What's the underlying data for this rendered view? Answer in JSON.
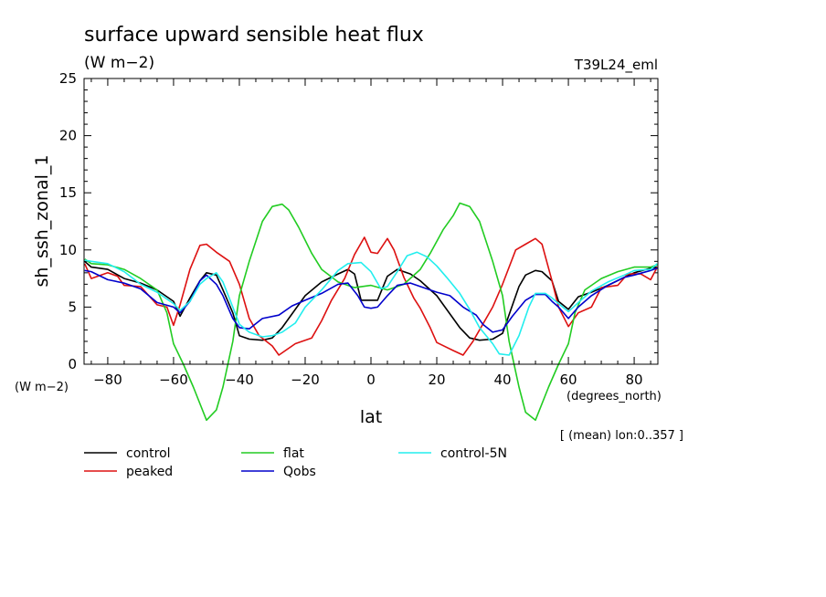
{
  "chart_data": {
    "type": "line",
    "title": "surface upward sensible heat flux",
    "subtitle": "(W m−2)",
    "run_label": "T39L24_eml",
    "ylabel": "sh_ssh_zonal_1",
    "y_unit_label": "(W m−2)",
    "xlabel": "lat",
    "x_unit_label": "(degrees_north)",
    "footnote": "[ (mean) lon:0..357 ]",
    "xlim": [
      -87.2,
      87.2
    ],
    "ylim": [
      0,
      25
    ],
    "x_ticks": [
      -80,
      -60,
      -40,
      -20,
      0,
      20,
      40,
      60,
      80
    ],
    "y_ticks": [
      0,
      5,
      10,
      15,
      20,
      25
    ],
    "grid": false,
    "legend_position": "bottom",
    "series": [
      {
        "name": "control",
        "color": "#000000",
        "points": [
          [
            -87,
            9.0
          ],
          [
            -85,
            8.5
          ],
          [
            -80,
            8.3
          ],
          [
            -75,
            7.5
          ],
          [
            -70,
            7.1
          ],
          [
            -65,
            6.5
          ],
          [
            -60,
            5.5
          ],
          [
            -58,
            4.2
          ],
          [
            -55,
            5.8
          ],
          [
            -52,
            7.3
          ],
          [
            -50,
            8.0
          ],
          [
            -47,
            7.8
          ],
          [
            -45,
            6.5
          ],
          [
            -42,
            4.5
          ],
          [
            -40,
            2.5
          ],
          [
            -37,
            2.2
          ],
          [
            -33,
            2.1
          ],
          [
            -30,
            2.3
          ],
          [
            -27,
            3.2
          ],
          [
            -23,
            4.8
          ],
          [
            -20,
            6.0
          ],
          [
            -15,
            7.2
          ],
          [
            -10,
            7.9
          ],
          [
            -7,
            8.3
          ],
          [
            -5,
            7.9
          ],
          [
            -3,
            5.6
          ],
          [
            0,
            5.6
          ],
          [
            2,
            5.6
          ],
          [
            5,
            7.7
          ],
          [
            8,
            8.3
          ],
          [
            12,
            7.9
          ],
          [
            15,
            7.3
          ],
          [
            20,
            6.0
          ],
          [
            23,
            4.8
          ],
          [
            27,
            3.2
          ],
          [
            30,
            2.3
          ],
          [
            33,
            2.1
          ],
          [
            37,
            2.2
          ],
          [
            40,
            2.7
          ],
          [
            45,
            6.8
          ],
          [
            47,
            7.8
          ],
          [
            50,
            8.2
          ],
          [
            52,
            8.1
          ],
          [
            55,
            7.3
          ],
          [
            57,
            5.5
          ],
          [
            60,
            4.8
          ],
          [
            63,
            5.9
          ],
          [
            67,
            6.3
          ],
          [
            72,
            6.9
          ],
          [
            77,
            7.6
          ],
          [
            80,
            8.0
          ],
          [
            85,
            8.4
          ],
          [
            87,
            8.5
          ]
        ]
      },
      {
        "name": "peaked",
        "color": "#dd1111",
        "points": [
          [
            -87,
            8.8
          ],
          [
            -85,
            7.5
          ],
          [
            -80,
            8.0
          ],
          [
            -77,
            7.7
          ],
          [
            -75,
            6.9
          ],
          [
            -70,
            6.8
          ],
          [
            -65,
            5.2
          ],
          [
            -62,
            5.0
          ],
          [
            -60,
            3.4
          ],
          [
            -58,
            5.2
          ],
          [
            -55,
            8.3
          ],
          [
            -52,
            10.4
          ],
          [
            -50,
            10.5
          ],
          [
            -47,
            9.8
          ],
          [
            -43,
            9.0
          ],
          [
            -40,
            7.0
          ],
          [
            -37,
            4.0
          ],
          [
            -34,
            2.5
          ],
          [
            -30,
            1.6
          ],
          [
            -28,
            0.8
          ],
          [
            -25,
            1.4
          ],
          [
            -23,
            1.8
          ],
          [
            -18,
            2.3
          ],
          [
            -15,
            3.8
          ],
          [
            -12,
            5.6
          ],
          [
            -8,
            7.5
          ],
          [
            -5,
            9.6
          ],
          [
            -2,
            11.1
          ],
          [
            0,
            9.8
          ],
          [
            2,
            9.7
          ],
          [
            5,
            11.0
          ],
          [
            7,
            10.0
          ],
          [
            10,
            7.6
          ],
          [
            13,
            5.8
          ],
          [
            15,
            4.9
          ],
          [
            18,
            3.2
          ],
          [
            20,
            1.9
          ],
          [
            25,
            1.2
          ],
          [
            28,
            0.8
          ],
          [
            31,
            2.0
          ],
          [
            34,
            3.5
          ],
          [
            37,
            5.0
          ],
          [
            40,
            7.0
          ],
          [
            44,
            10.0
          ],
          [
            47,
            10.5
          ],
          [
            50,
            11.0
          ],
          [
            52,
            10.5
          ],
          [
            55,
            7.3
          ],
          [
            57,
            5.0
          ],
          [
            60,
            3.3
          ],
          [
            63,
            4.5
          ],
          [
            67,
            5.0
          ],
          [
            70,
            6.7
          ],
          [
            75,
            6.9
          ],
          [
            78,
            7.9
          ],
          [
            82,
            7.9
          ],
          [
            85,
            7.4
          ],
          [
            87,
            8.5
          ]
        ]
      },
      {
        "name": "flat",
        "color": "#22cc22",
        "points": [
          [
            -87,
            9.2
          ],
          [
            -85,
            8.8
          ],
          [
            -80,
            8.7
          ],
          [
            -75,
            8.3
          ],
          [
            -70,
            7.5
          ],
          [
            -65,
            6.5
          ],
          [
            -62,
            4.5
          ],
          [
            -60,
            1.8
          ],
          [
            -57,
            0.0
          ],
          [
            -54,
            -2.0
          ],
          [
            -50,
            -4.9
          ],
          [
            -47,
            -4.0
          ],
          [
            -45,
            -2.0
          ],
          [
            -42,
            2.0
          ],
          [
            -40,
            6.0
          ],
          [
            -37,
            9.0
          ],
          [
            -33,
            12.5
          ],
          [
            -30,
            13.8
          ],
          [
            -27,
            14.0
          ],
          [
            -25,
            13.5
          ],
          [
            -22,
            12.0
          ],
          [
            -18,
            9.7
          ],
          [
            -15,
            8.3
          ],
          [
            -10,
            7.2
          ],
          [
            -5,
            6.7
          ],
          [
            0,
            6.9
          ],
          [
            5,
            6.5
          ],
          [
            10,
            7.0
          ],
          [
            15,
            8.3
          ],
          [
            18,
            9.7
          ],
          [
            22,
            11.8
          ],
          [
            25,
            13.0
          ],
          [
            27,
            14.1
          ],
          [
            30,
            13.8
          ],
          [
            33,
            12.5
          ],
          [
            37,
            9.0
          ],
          [
            40,
            6.0
          ],
          [
            42,
            2.0
          ],
          [
            45,
            -2.0
          ],
          [
            47,
            -4.2
          ],
          [
            50,
            -4.9
          ],
          [
            54,
            -2.0
          ],
          [
            57,
            0.0
          ],
          [
            60,
            1.8
          ],
          [
            62,
            4.5
          ],
          [
            65,
            6.5
          ],
          [
            70,
            7.5
          ],
          [
            75,
            8.1
          ],
          [
            80,
            8.5
          ],
          [
            85,
            8.5
          ],
          [
            87,
            8.7
          ]
        ]
      },
      {
        "name": "Qobs",
        "color": "#0000cc",
        "points": [
          [
            -87,
            8.2
          ],
          [
            -85,
            8.1
          ],
          [
            -80,
            7.4
          ],
          [
            -75,
            7.1
          ],
          [
            -70,
            6.6
          ],
          [
            -65,
            5.4
          ],
          [
            -60,
            5.0
          ],
          [
            -58,
            4.5
          ],
          [
            -55,
            5.5
          ],
          [
            -52,
            7.3
          ],
          [
            -50,
            7.8
          ],
          [
            -47,
            7.0
          ],
          [
            -45,
            6.0
          ],
          [
            -42,
            4.0
          ],
          [
            -40,
            3.2
          ],
          [
            -37,
            3.1
          ],
          [
            -33,
            4.0
          ],
          [
            -28,
            4.3
          ],
          [
            -24,
            5.1
          ],
          [
            -20,
            5.6
          ],
          [
            -15,
            6.2
          ],
          [
            -10,
            7.0
          ],
          [
            -7,
            7.1
          ],
          [
            -4,
            6.0
          ],
          [
            -2,
            5.0
          ],
          [
            0,
            4.9
          ],
          [
            2,
            5.0
          ],
          [
            5,
            6.0
          ],
          [
            8,
            6.9
          ],
          [
            12,
            7.1
          ],
          [
            17,
            6.6
          ],
          [
            20,
            6.3
          ],
          [
            24,
            6.0
          ],
          [
            28,
            5.0
          ],
          [
            32,
            4.3
          ],
          [
            34,
            3.5
          ],
          [
            37,
            2.8
          ],
          [
            40,
            3.0
          ],
          [
            43,
            4.2
          ],
          [
            47,
            5.6
          ],
          [
            50,
            6.1
          ],
          [
            53,
            6.1
          ],
          [
            55,
            5.5
          ],
          [
            57,
            5.0
          ],
          [
            60,
            4.0
          ],
          [
            63,
            5.0
          ],
          [
            67,
            6.0
          ],
          [
            72,
            6.9
          ],
          [
            77,
            7.6
          ],
          [
            80,
            7.8
          ],
          [
            85,
            8.2
          ],
          [
            87,
            8.4
          ]
        ]
      },
      {
        "name": "control-5N",
        "color": "#22eeee",
        "points": [
          [
            -87,
            9.1
          ],
          [
            -85,
            9.0
          ],
          [
            -80,
            8.8
          ],
          [
            -75,
            8.1
          ],
          [
            -70,
            7.0
          ],
          [
            -65,
            6.3
          ],
          [
            -60,
            5.3
          ],
          [
            -58,
            4.7
          ],
          [
            -55,
            5.5
          ],
          [
            -52,
            7.0
          ],
          [
            -50,
            7.5
          ],
          [
            -47,
            8.0
          ],
          [
            -45,
            7.2
          ],
          [
            -42,
            5.0
          ],
          [
            -40,
            3.5
          ],
          [
            -37,
            2.8
          ],
          [
            -33,
            2.4
          ],
          [
            -30,
            2.5
          ],
          [
            -27,
            2.8
          ],
          [
            -23,
            3.6
          ],
          [
            -20,
            5.0
          ],
          [
            -15,
            6.5
          ],
          [
            -10,
            8.2
          ],
          [
            -7,
            8.8
          ],
          [
            -3,
            8.9
          ],
          [
            0,
            8.1
          ],
          [
            3,
            6.6
          ],
          [
            5,
            6.8
          ],
          [
            8,
            8.1
          ],
          [
            11,
            9.5
          ],
          [
            14,
            9.8
          ],
          [
            17,
            9.4
          ],
          [
            20,
            8.6
          ],
          [
            23,
            7.6
          ],
          [
            27,
            6.2
          ],
          [
            30,
            4.8
          ],
          [
            33,
            3.2
          ],
          [
            37,
            1.8
          ],
          [
            39,
            0.9
          ],
          [
            42,
            0.8
          ],
          [
            45,
            2.5
          ],
          [
            48,
            5.0
          ],
          [
            50,
            6.2
          ],
          [
            53,
            6.2
          ],
          [
            55,
            5.8
          ],
          [
            57,
            5.3
          ],
          [
            60,
            4.6
          ],
          [
            63,
            5.4
          ],
          [
            67,
            6.4
          ],
          [
            72,
            7.2
          ],
          [
            77,
            7.8
          ],
          [
            80,
            8.2
          ],
          [
            85,
            8.3
          ],
          [
            87,
            8.8
          ]
        ]
      }
    ]
  }
}
